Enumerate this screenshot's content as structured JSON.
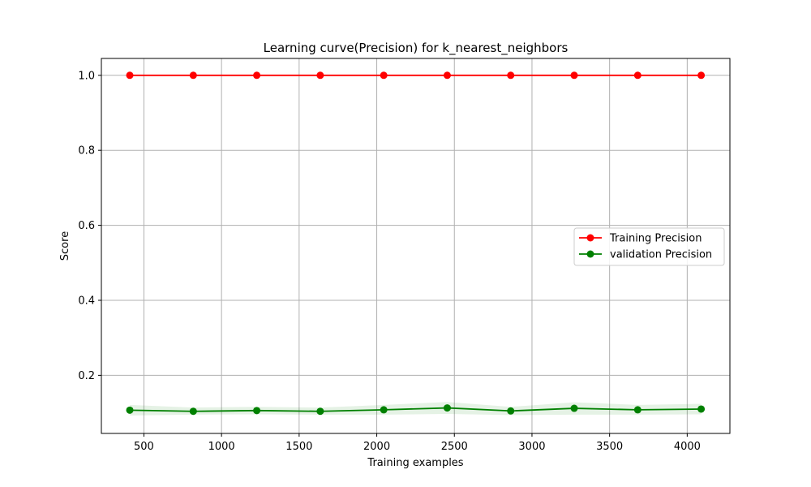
{
  "chart_data": {
    "type": "line",
    "title": "Learning curve(Precision) for k_nearest_neighbors",
    "xlabel": "Training examples",
    "ylabel": "Score",
    "xlim": [
      226,
      4275
    ],
    "ylim": [
      0.045,
      1.045
    ],
    "grid": true,
    "legend_position": "center-right",
    "x_ticks": [
      500,
      1000,
      1500,
      2000,
      2500,
      3000,
      3500,
      4000
    ],
    "y_ticks": [
      0.2,
      0.4,
      0.6,
      0.8,
      1.0
    ],
    "x_tick_labels": [
      "500",
      "1000",
      "1500",
      "2000",
      "2500",
      "3000",
      "3500",
      "4000"
    ],
    "y_tick_labels": [
      "0.2",
      "0.4",
      "0.6",
      "0.8",
      "1.0"
    ],
    "x": [
      409,
      818,
      1227,
      1636,
      2045,
      2454,
      2863,
      3272,
      3681,
      4090
    ],
    "series": [
      {
        "name": "Training Precision",
        "color": "#ff0000",
        "values": [
          1.0,
          1.0,
          1.0,
          1.0,
          1.0,
          1.0,
          1.0,
          1.0,
          1.0,
          1.0
        ]
      },
      {
        "name": "validation Precision",
        "color": "#008000",
        "band_color": "#008000",
        "values": [
          0.107,
          0.104,
          0.106,
          0.104,
          0.108,
          0.113,
          0.105,
          0.112,
          0.108,
          0.11
        ],
        "band_lower": [
          0.093,
          0.095,
          0.096,
          0.095,
          0.095,
          0.097,
          0.094,
          0.095,
          0.095,
          0.096
        ],
        "band_upper": [
          0.121,
          0.114,
          0.116,
          0.114,
          0.121,
          0.129,
          0.116,
          0.128,
          0.121,
          0.124
        ]
      }
    ]
  }
}
